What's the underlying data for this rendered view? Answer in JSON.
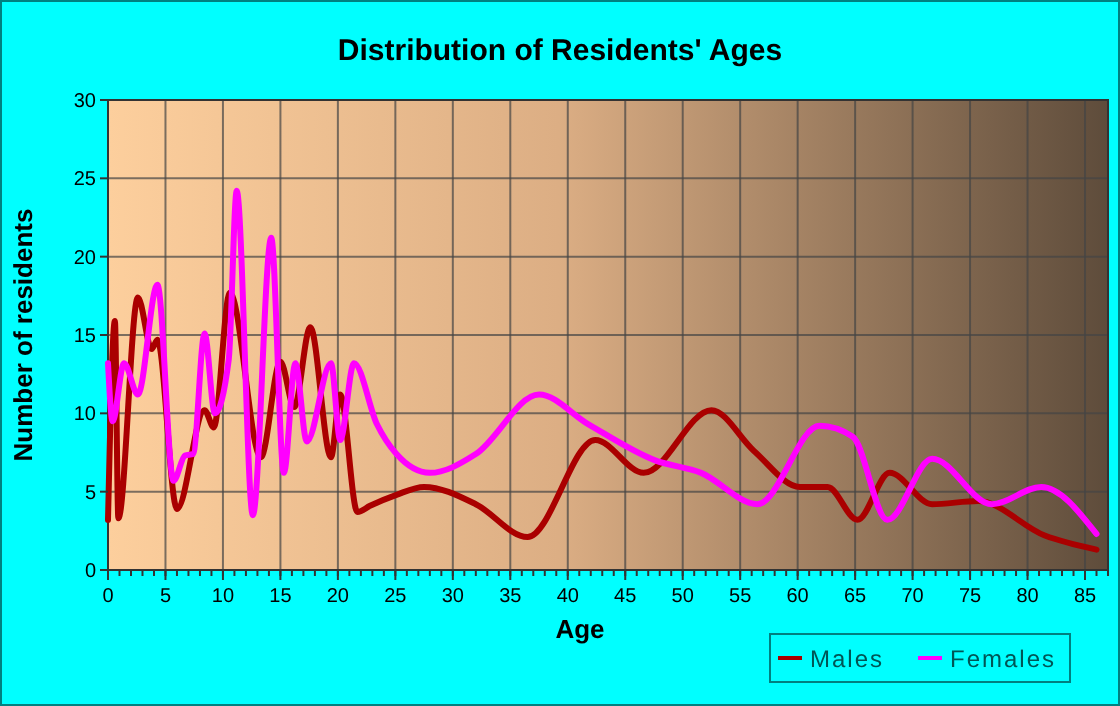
{
  "chart_data": {
    "type": "line",
    "title": "Distribution of Residents' Ages",
    "xlabel": "Age",
    "ylabel": "Number of residents",
    "xlim": [
      0,
      87
    ],
    "xticks": [
      0,
      5,
      10,
      15,
      20,
      25,
      30,
      35,
      40,
      45,
      50,
      55,
      60,
      65,
      70,
      75,
      80,
      85
    ],
    "ylim": [
      0,
      30
    ],
    "yticks": [
      0,
      5,
      10,
      15,
      20,
      25,
      30
    ],
    "grid": true,
    "legend": "bottom right",
    "marker": "none",
    "line_style": "solid",
    "series": [
      {
        "name": "Males",
        "color": "#aa0000",
        "x": [
          0,
          0.6,
          0.9,
          2.6,
          3.8,
          4.3,
          6,
          8.4,
          9.2,
          10.6,
          13.3,
          15,
          16.2,
          17.6,
          19.4,
          20.2,
          21.7,
          22.8,
          25.1,
          27.5,
          32,
          36.5,
          42.4,
          46.6,
          52.5,
          56.2,
          60.2,
          62.6,
          65.2,
          68,
          71.7,
          75.7,
          81.5,
          86
        ],
        "values": [
          3.2,
          15.9,
          3.3,
          17.4,
          14.1,
          14.7,
          3.9,
          10.2,
          9.1,
          17.7,
          7.2,
          13.3,
          10.4,
          15.5,
          7.2,
          11.2,
          3.7,
          4.1,
          4.8,
          5.3,
          4.2,
          2.1,
          8.3,
          6.2,
          10.2,
          7.6,
          5.3,
          5.3,
          3.2,
          6.2,
          4.2,
          4.4,
          2.2,
          1.3
        ]
      },
      {
        "name": "Females",
        "color": "#ff00ff",
        "x": [
          0,
          0.4,
          1.4,
          2.6,
          4.3,
          5.7,
          6.7,
          7.4,
          8.4,
          9.3,
          10.5,
          11.2,
          12.6,
          14.2,
          15.3,
          16.3,
          17.3,
          19.4,
          20.2,
          21.4,
          23.4,
          25.1,
          28,
          32,
          37.5,
          41.8,
          47.6,
          51.6,
          56.5,
          61.9,
          64.8,
          67.8,
          71.7,
          76.9,
          81.2,
          86
        ],
        "values": [
          13.2,
          9.5,
          13.2,
          11.2,
          18.2,
          5.7,
          7.3,
          7.4,
          15.1,
          10,
          13.4,
          24.2,
          3.5,
          21.2,
          6.2,
          13.2,
          8.2,
          13.2,
          8.3,
          13.2,
          9.3,
          7.4,
          6.2,
          7.4,
          11.2,
          9.3,
          7,
          6.2,
          4.2,
          9.2,
          8.5,
          3.2,
          7.1,
          4.2,
          5.3,
          2.3
        ]
      }
    ]
  }
}
